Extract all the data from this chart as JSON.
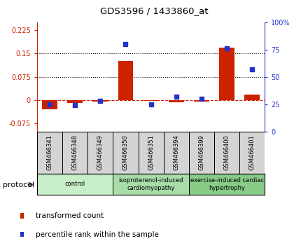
{
  "title": "GDS3596 / 1433860_at",
  "samples": [
    "GSM466341",
    "GSM466348",
    "GSM466349",
    "GSM466350",
    "GSM466351",
    "GSM466394",
    "GSM466399",
    "GSM466400",
    "GSM466401"
  ],
  "transformed_count": [
    -0.03,
    -0.008,
    -0.005,
    0.125,
    -0.003,
    -0.006,
    -0.004,
    0.168,
    0.018
  ],
  "percentile_rank": [
    25,
    24,
    28,
    80,
    25,
    32,
    30,
    76,
    57
  ],
  "groups": [
    {
      "label": "control",
      "start": 0,
      "end": 3,
      "color": "#c8eec8"
    },
    {
      "label": "isoproterenol-induced\ncardiomyopathy",
      "start": 3,
      "end": 6,
      "color": "#a8dca8"
    },
    {
      "label": "exercise-induced cardiac\nhypertrophy",
      "start": 6,
      "end": 9,
      "color": "#88cc88"
    }
  ],
  "left_ylim": [
    -0.1,
    0.25
  ],
  "right_ylim": [
    0,
    100
  ],
  "left_yticks": [
    -0.075,
    0,
    0.075,
    0.15,
    0.225
  ],
  "right_yticks": [
    0,
    25,
    50,
    75,
    100
  ],
  "right_yticklabels": [
    "0",
    "25",
    "50",
    "75",
    "100%"
  ],
  "left_yticklabels": [
    "-0.075",
    "0",
    "0.075",
    "0.15",
    "0.225"
  ],
  "hlines": [
    0.075,
    0.15
  ],
  "bar_color": "#cc2200",
  "dot_color": "#2233cc",
  "protocol_label": "protocol",
  "legend_items": [
    {
      "color": "#cc2200",
      "label": "transformed count"
    },
    {
      "color": "#2233cc",
      "label": "percentile rank within the sample"
    }
  ]
}
